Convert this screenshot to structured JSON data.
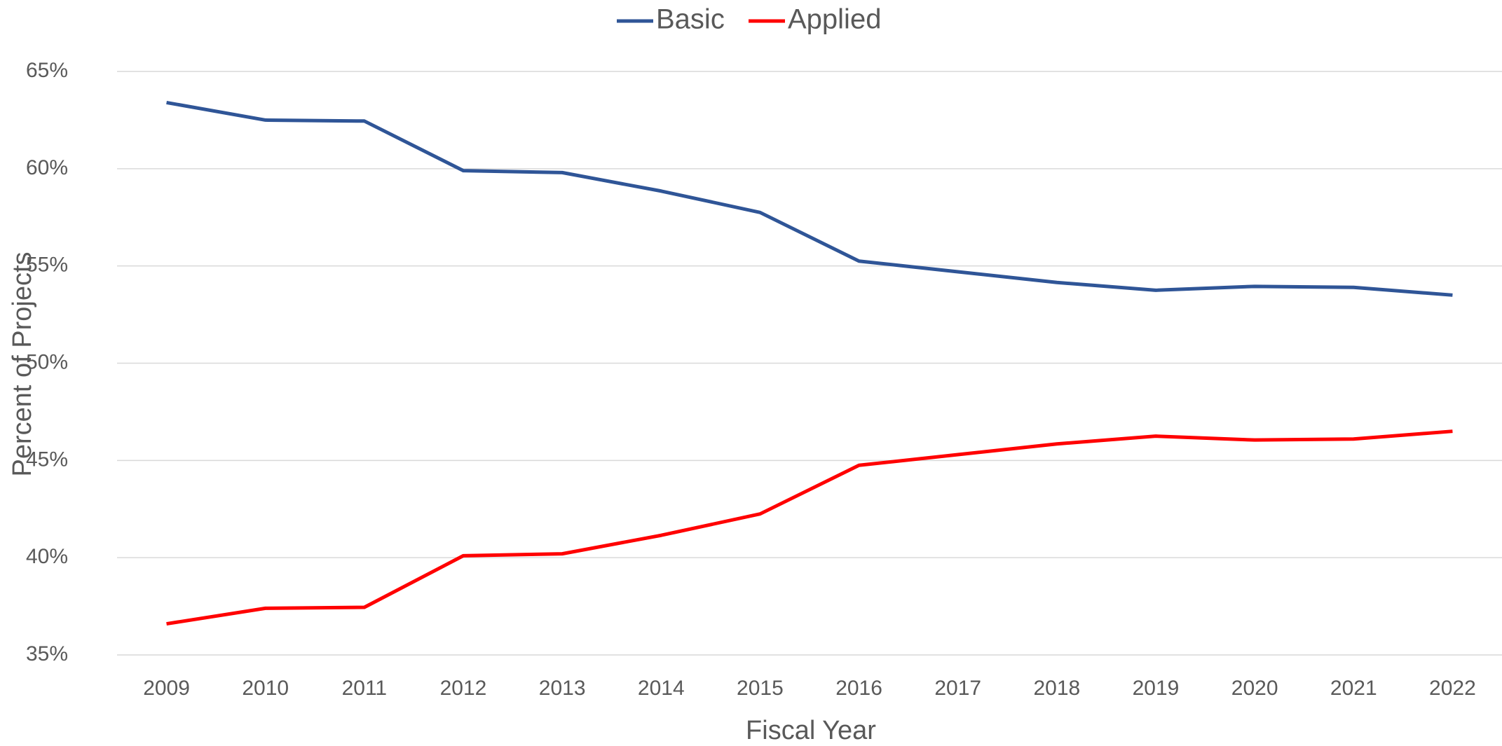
{
  "chart_data": {
    "type": "line",
    "x_label": "Fiscal Year",
    "y_label": "Percent of Projects",
    "categories": [
      "2009",
      "2010",
      "2011",
      "2012",
      "2013",
      "2014",
      "2015",
      "2016",
      "2017",
      "2018",
      "2019",
      "2020",
      "2021",
      "2022"
    ],
    "series": [
      {
        "name": "Basic",
        "color": "#2f5597",
        "values": [
          63.4,
          62.5,
          62.45,
          59.9,
          59.8,
          58.85,
          57.75,
          55.25,
          54.7,
          54.15,
          53.75,
          53.95,
          53.9,
          53.5
        ]
      },
      {
        "name": "Applied",
        "color": "#ff0000",
        "values": [
          36.6,
          37.4,
          37.45,
          40.1,
          40.2,
          41.15,
          42.25,
          44.75,
          45.3,
          45.85,
          46.25,
          46.05,
          46.1,
          46.5
        ]
      }
    ],
    "ylim": [
      35,
      65
    ],
    "yticks": [
      {
        "value": 35,
        "label": "35%"
      },
      {
        "value": 40,
        "label": "40%"
      },
      {
        "value": 45,
        "label": "45%"
      },
      {
        "value": 50,
        "label": "50%"
      },
      {
        "value": 55,
        "label": "55%"
      },
      {
        "value": 60,
        "label": "60%"
      },
      {
        "value": 65,
        "label": "65%"
      }
    ],
    "grid": true,
    "legend": "top"
  }
}
